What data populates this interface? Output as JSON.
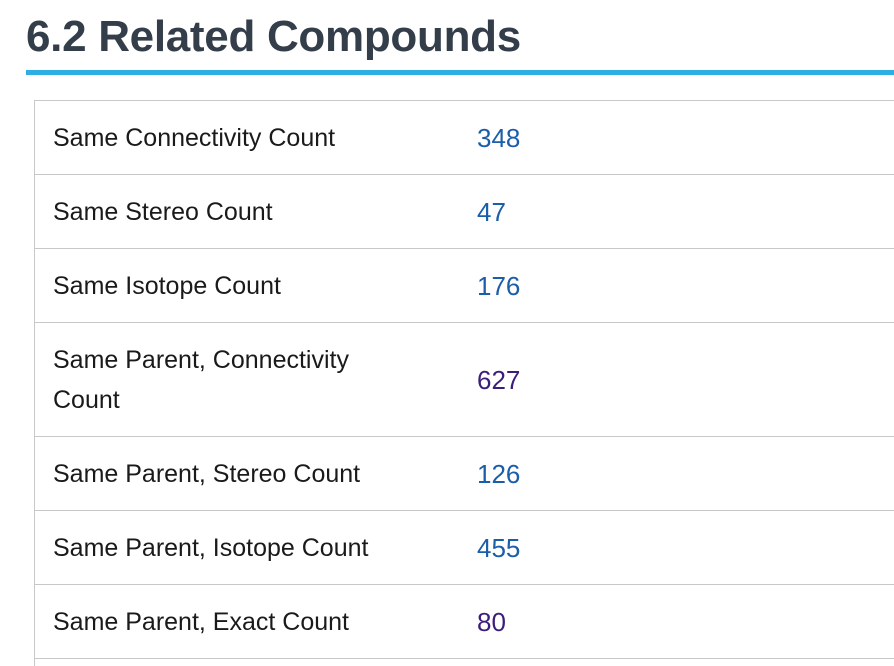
{
  "section": {
    "title": "6.2 Related Compounds"
  },
  "colors": {
    "accent_rule": "#2eaee3",
    "link": "#1a5eaa",
    "visited_link": "#3b1d7a",
    "title": "#333e4a"
  },
  "rows": [
    {
      "label": "Same Connectivity Count",
      "value": "348",
      "visited": false
    },
    {
      "label": "Same Stereo Count",
      "value": "47",
      "visited": false
    },
    {
      "label": "Same Isotope Count",
      "value": "176",
      "visited": false
    },
    {
      "label": "Same Parent, Connectivity Count",
      "value": "627",
      "visited": true
    },
    {
      "label": "Same Parent, Stereo Count",
      "value": "126",
      "visited": false
    },
    {
      "label": "Same Parent, Isotope Count",
      "value": "455",
      "visited": false
    },
    {
      "label": "Same Parent, Exact Count",
      "value": "80",
      "visited": true
    }
  ]
}
